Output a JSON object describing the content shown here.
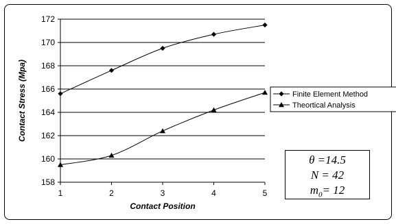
{
  "chart_data": {
    "type": "line",
    "title": "",
    "xlabel": "Contact Position",
    "ylabel": "Contact Stress (Mpa)",
    "x": [
      1,
      2,
      3,
      4,
      5
    ],
    "xlim": [
      1,
      5
    ],
    "ylim": [
      158,
      172
    ],
    "yticks": [
      158,
      160,
      162,
      164,
      166,
      168,
      170,
      172
    ],
    "grid": "horizontal",
    "legend_position": "right",
    "series": [
      {
        "name": "Finite Element Method",
        "marker": "diamond",
        "values": [
          165.6,
          167.6,
          169.5,
          170.7,
          171.5
        ]
      },
      {
        "name": "Theortical Analysis",
        "marker": "triangle",
        "values": [
          159.5,
          160.3,
          162.4,
          164.2,
          165.7
        ]
      }
    ]
  },
  "params": {
    "theta": "θ =14.5",
    "N": "N = 42",
    "m0_prefix": "m",
    "m0_sub": "0",
    "m0_suffix": "= 12"
  }
}
